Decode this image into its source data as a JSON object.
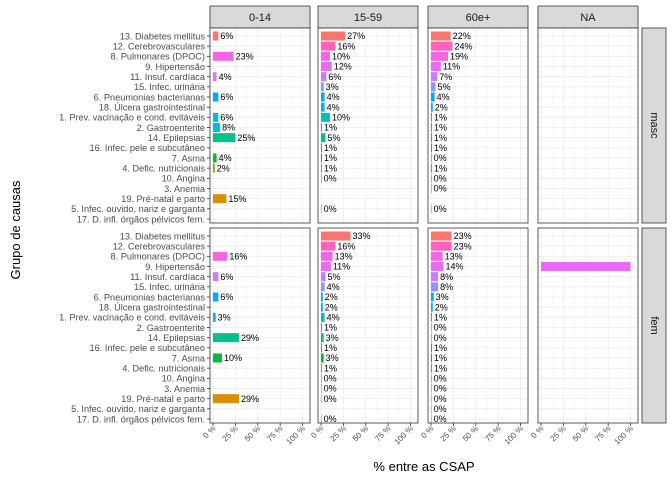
{
  "chart_data": {
    "type": "bar",
    "orientation": "horizontal",
    "layout": "facet grid (rows: sexo, columns: faixa etária)",
    "xlabel": "% entre as CSAP",
    "ylabel": "Grupo de causas",
    "xlim": [
      0,
      105
    ],
    "x_ticks": [
      0,
      25,
      50,
      75,
      100
    ],
    "x_tick_labels": [
      "0 %",
      "25 %",
      "50 %",
      "75 %",
      "100 %"
    ],
    "grid": true,
    "legend": "none",
    "columns": [
      "0-14",
      "15-59",
      "60e+",
      "NA"
    ],
    "rows": [
      "masc",
      "fem"
    ],
    "categories": [
      "13. Diabetes mellitus",
      "12. Cerebrovasculares",
      "8. Pulmonares (DPOC)",
      "9. Hipertensão",
      "11. Insuf. cardíaca",
      "15. Infec. urinária",
      "6. Pneumonias bacterianas",
      "18. Úlcera gastrointestinal",
      "1. Prev. vacinação e cond. evitáveis",
      "2. Gastroenterite",
      "14. Epilepsias",
      "16. Infec. pele e subcutâneo",
      "7. Asma",
      "4. Defic. nutricionais",
      "10. Angina",
      "3. Anemia",
      "19. Pré-natal e parto",
      "5. Infec. ouvido, nariz e garganta",
      "17. D. infl. órgãos pélvicos fem."
    ],
    "colors": {
      "13. Diabetes mellitus": "#F8766D",
      "12. Cerebrovasculares": "#FF62BC",
      "8. Pulmonares (DPOC)": "#F564E3",
      "9. Hipertensão": "#E76BF3",
      "11. Insuf. cardíaca": "#C77CFF",
      "15. Infec. urinária": "#9590FF",
      "6. Pneumonias bacterianas": "#00A9FF",
      "18. Úlcera gastrointestinal": "#00B0F6",
      "1. Prev. vacinação e cond. evitáveis": "#00BFC4",
      "2. Gastroenterite": "#00BCD8",
      "14. Epilepsias": "#00C08B",
      "16. Infec. pele e subcutâneo": "#00BF7D",
      "7. Asma": "#00BA38",
      "4. Defic. nutricionais": "#7CAE00",
      "10. Angina": "#39B600",
      "3. Anemia": "#A3A500",
      "19. Pré-natal e parto": "#D89000",
      "5. Infec. ouvido, nariz e garganta": "#E58700",
      "17. D. infl. órgãos pélvicos fem.": "#C99800"
    },
    "panels": [
      {
        "row": "masc",
        "column": "0-14",
        "values": [
          {
            "category": "13. Diabetes mellitus",
            "value": 6,
            "label": "6%"
          },
          {
            "category": "8. Pulmonares (DPOC)",
            "value": 23,
            "label": "23%"
          },
          {
            "category": "11. Insuf. cardíaca",
            "value": 4,
            "label": "4%"
          },
          {
            "category": "6. Pneumonias bacterianas",
            "value": 6,
            "label": "6%"
          },
          {
            "category": "1. Prev. vacinação e cond. evitáveis",
            "value": 6,
            "label": "6%"
          },
          {
            "category": "2. Gastroenterite",
            "value": 8,
            "label": "8%"
          },
          {
            "category": "14. Epilepsias",
            "value": 25,
            "label": "25%"
          },
          {
            "category": "7. Asma",
            "value": 4,
            "label": "4%"
          },
          {
            "category": "4. Defic. nutricionais",
            "value": 2,
            "label": "2%"
          },
          {
            "category": "19. Pré-natal e parto",
            "value": 15,
            "label": "15%"
          }
        ]
      },
      {
        "row": "masc",
        "column": "15-59",
        "values": [
          {
            "category": "13. Diabetes mellitus",
            "value": 27,
            "label": "27%"
          },
          {
            "category": "12. Cerebrovasculares",
            "value": 16,
            "label": "16%"
          },
          {
            "category": "8. Pulmonares (DPOC)",
            "value": 10,
            "label": "10%"
          },
          {
            "category": "9. Hipertensão",
            "value": 12,
            "label": "12%"
          },
          {
            "category": "11. Insuf. cardíaca",
            "value": 6,
            "label": "6%"
          },
          {
            "category": "15. Infec. urinária",
            "value": 3,
            "label": "3%"
          },
          {
            "category": "6. Pneumonias bacterianas",
            "value": 4,
            "label": "4%"
          },
          {
            "category": "18. Úlcera gastrointestinal",
            "value": 4,
            "label": "4%"
          },
          {
            "category": "1. Prev. vacinação e cond. evitáveis",
            "value": 10,
            "label": "10%"
          },
          {
            "category": "2. Gastroenterite",
            "value": 1,
            "label": "1%"
          },
          {
            "category": "14. Epilepsias",
            "value": 5,
            "label": "5%"
          },
          {
            "category": "16. Infec. pele e subcutâneo",
            "value": 1,
            "label": "1%"
          },
          {
            "category": "7. Asma",
            "value": 1,
            "label": "1%"
          },
          {
            "category": "4. Defic. nutricionais",
            "value": 1,
            "label": "1%"
          },
          {
            "category": "10. Angina",
            "value": 0,
            "label": "0%"
          },
          {
            "category": "5. Infec. ouvido, nariz e garganta",
            "value": 0,
            "label": "0%"
          }
        ]
      },
      {
        "row": "masc",
        "column": "60e+",
        "values": [
          {
            "category": "13. Diabetes mellitus",
            "value": 22,
            "label": "22%"
          },
          {
            "category": "12. Cerebrovasculares",
            "value": 24,
            "label": "24%"
          },
          {
            "category": "8. Pulmonares (DPOC)",
            "value": 19,
            "label": "19%"
          },
          {
            "category": "9. Hipertensão",
            "value": 11,
            "label": "11%"
          },
          {
            "category": "11. Insuf. cardíaca",
            "value": 7,
            "label": "7%"
          },
          {
            "category": "15. Infec. urinária",
            "value": 5,
            "label": "5%"
          },
          {
            "category": "6. Pneumonias bacterianas",
            "value": 4,
            "label": "4%"
          },
          {
            "category": "18. Úlcera gastrointestinal",
            "value": 2,
            "label": "2%"
          },
          {
            "category": "1. Prev. vacinação e cond. evitáveis",
            "value": 1,
            "label": "1%"
          },
          {
            "category": "2. Gastroenterite",
            "value": 1,
            "label": "1%"
          },
          {
            "category": "14. Epilepsias",
            "value": 1,
            "label": "1%"
          },
          {
            "category": "16. Infec. pele e subcutâneo",
            "value": 1,
            "label": "1%"
          },
          {
            "category": "7. Asma",
            "value": 0,
            "label": "0%"
          },
          {
            "category": "4. Defic. nutricionais",
            "value": 1,
            "label": "1%"
          },
          {
            "category": "10. Angina",
            "value": 0,
            "label": "0%"
          },
          {
            "category": "3. Anemia",
            "value": 0,
            "label": "0%"
          },
          {
            "category": "5. Infec. ouvido, nariz e garganta",
            "value": 0,
            "label": "0%"
          }
        ]
      },
      {
        "row": "masc",
        "column": "NA",
        "values": []
      },
      {
        "row": "fem",
        "column": "0-14",
        "values": [
          {
            "category": "8. Pulmonares (DPOC)",
            "value": 16,
            "label": "16%"
          },
          {
            "category": "11. Insuf. cardíaca",
            "value": 6,
            "label": "6%"
          },
          {
            "category": "6. Pneumonias bacterianas",
            "value": 6,
            "label": "6%"
          },
          {
            "category": "1. Prev. vacinação e cond. evitáveis",
            "value": 3,
            "label": "3%"
          },
          {
            "category": "14. Epilepsias",
            "value": 29,
            "label": "29%"
          },
          {
            "category": "7. Asma",
            "value": 10,
            "label": "10%"
          },
          {
            "category": "19. Pré-natal e parto",
            "value": 29,
            "label": "29%"
          }
        ]
      },
      {
        "row": "fem",
        "column": "15-59",
        "values": [
          {
            "category": "13. Diabetes mellitus",
            "value": 33,
            "label": "33%"
          },
          {
            "category": "12. Cerebrovasculares",
            "value": 16,
            "label": "16%"
          },
          {
            "category": "8. Pulmonares (DPOC)",
            "value": 13,
            "label": "13%"
          },
          {
            "category": "9. Hipertensão",
            "value": 11,
            "label": "11%"
          },
          {
            "category": "11. Insuf. cardíaca",
            "value": 5,
            "label": "5%"
          },
          {
            "category": "15. Infec. urinária",
            "value": 4,
            "label": "4%"
          },
          {
            "category": "6. Pneumonias bacterianas",
            "value": 2,
            "label": "2%"
          },
          {
            "category": "18. Úlcera gastrointestinal",
            "value": 2,
            "label": "2%"
          },
          {
            "category": "1. Prev. vacinação e cond. evitáveis",
            "value": 4,
            "label": "4%"
          },
          {
            "category": "2. Gastroenterite",
            "value": 1,
            "label": "1%"
          },
          {
            "category": "14. Epilepsias",
            "value": 3,
            "label": "3%"
          },
          {
            "category": "16. Infec. pele e subcutâneo",
            "value": 1,
            "label": "1%"
          },
          {
            "category": "7. Asma",
            "value": 3,
            "label": "3%"
          },
          {
            "category": "4. Defic. nutricionais",
            "value": 1,
            "label": "1%"
          },
          {
            "category": "10. Angina",
            "value": 0,
            "label": "0%"
          },
          {
            "category": "3. Anemia",
            "value": 0,
            "label": "0%"
          },
          {
            "category": "19. Pré-natal e parto",
            "value": 0,
            "label": "0%"
          },
          {
            "category": "17. D. infl. órgãos pélvicos fem.",
            "value": 0,
            "label": "0%"
          }
        ]
      },
      {
        "row": "fem",
        "column": "60e+",
        "values": [
          {
            "category": "13. Diabetes mellitus",
            "value": 23,
            "label": "23%"
          },
          {
            "category": "12. Cerebrovasculares",
            "value": 23,
            "label": "23%"
          },
          {
            "category": "8. Pulmonares (DPOC)",
            "value": 13,
            "label": "13%"
          },
          {
            "category": "9. Hipertensão",
            "value": 14,
            "label": "14%"
          },
          {
            "category": "11. Insuf. cardíaca",
            "value": 8,
            "label": "8%"
          },
          {
            "category": "15. Infec. urinária",
            "value": 8,
            "label": "8%"
          },
          {
            "category": "6. Pneumonias bacterianas",
            "value": 3,
            "label": "3%"
          },
          {
            "category": "18. Úlcera gastrointestinal",
            "value": 2,
            "label": "2%"
          },
          {
            "category": "1. Prev. vacinação e cond. evitáveis",
            "value": 1,
            "label": "1%"
          },
          {
            "category": "2. Gastroenterite",
            "value": 0,
            "label": "0%"
          },
          {
            "category": "14. Epilepsias",
            "value": 0,
            "label": "0%"
          },
          {
            "category": "16. Infec. pele e subcutâneo",
            "value": 1,
            "label": "1%"
          },
          {
            "category": "7. Asma",
            "value": 1,
            "label": "1%"
          },
          {
            "category": "4. Defic. nutricionais",
            "value": 1,
            "label": "1%"
          },
          {
            "category": "10. Angina",
            "value": 0,
            "label": "0%"
          },
          {
            "category": "3. Anemia",
            "value": 0,
            "label": "0%"
          },
          {
            "category": "19. Pré-natal e parto",
            "value": 0,
            "label": "0%"
          },
          {
            "category": "5. Infec. ouvido, nariz e garganta",
            "value": 0,
            "label": "0%"
          },
          {
            "category": "17. D. infl. órgãos pélvicos fem.",
            "value": 0,
            "label": "0%"
          }
        ]
      },
      {
        "row": "fem",
        "column": "NA",
        "values": [
          {
            "category": "9. Hipertensão",
            "value": 100,
            "label": ""
          }
        ]
      }
    ]
  }
}
